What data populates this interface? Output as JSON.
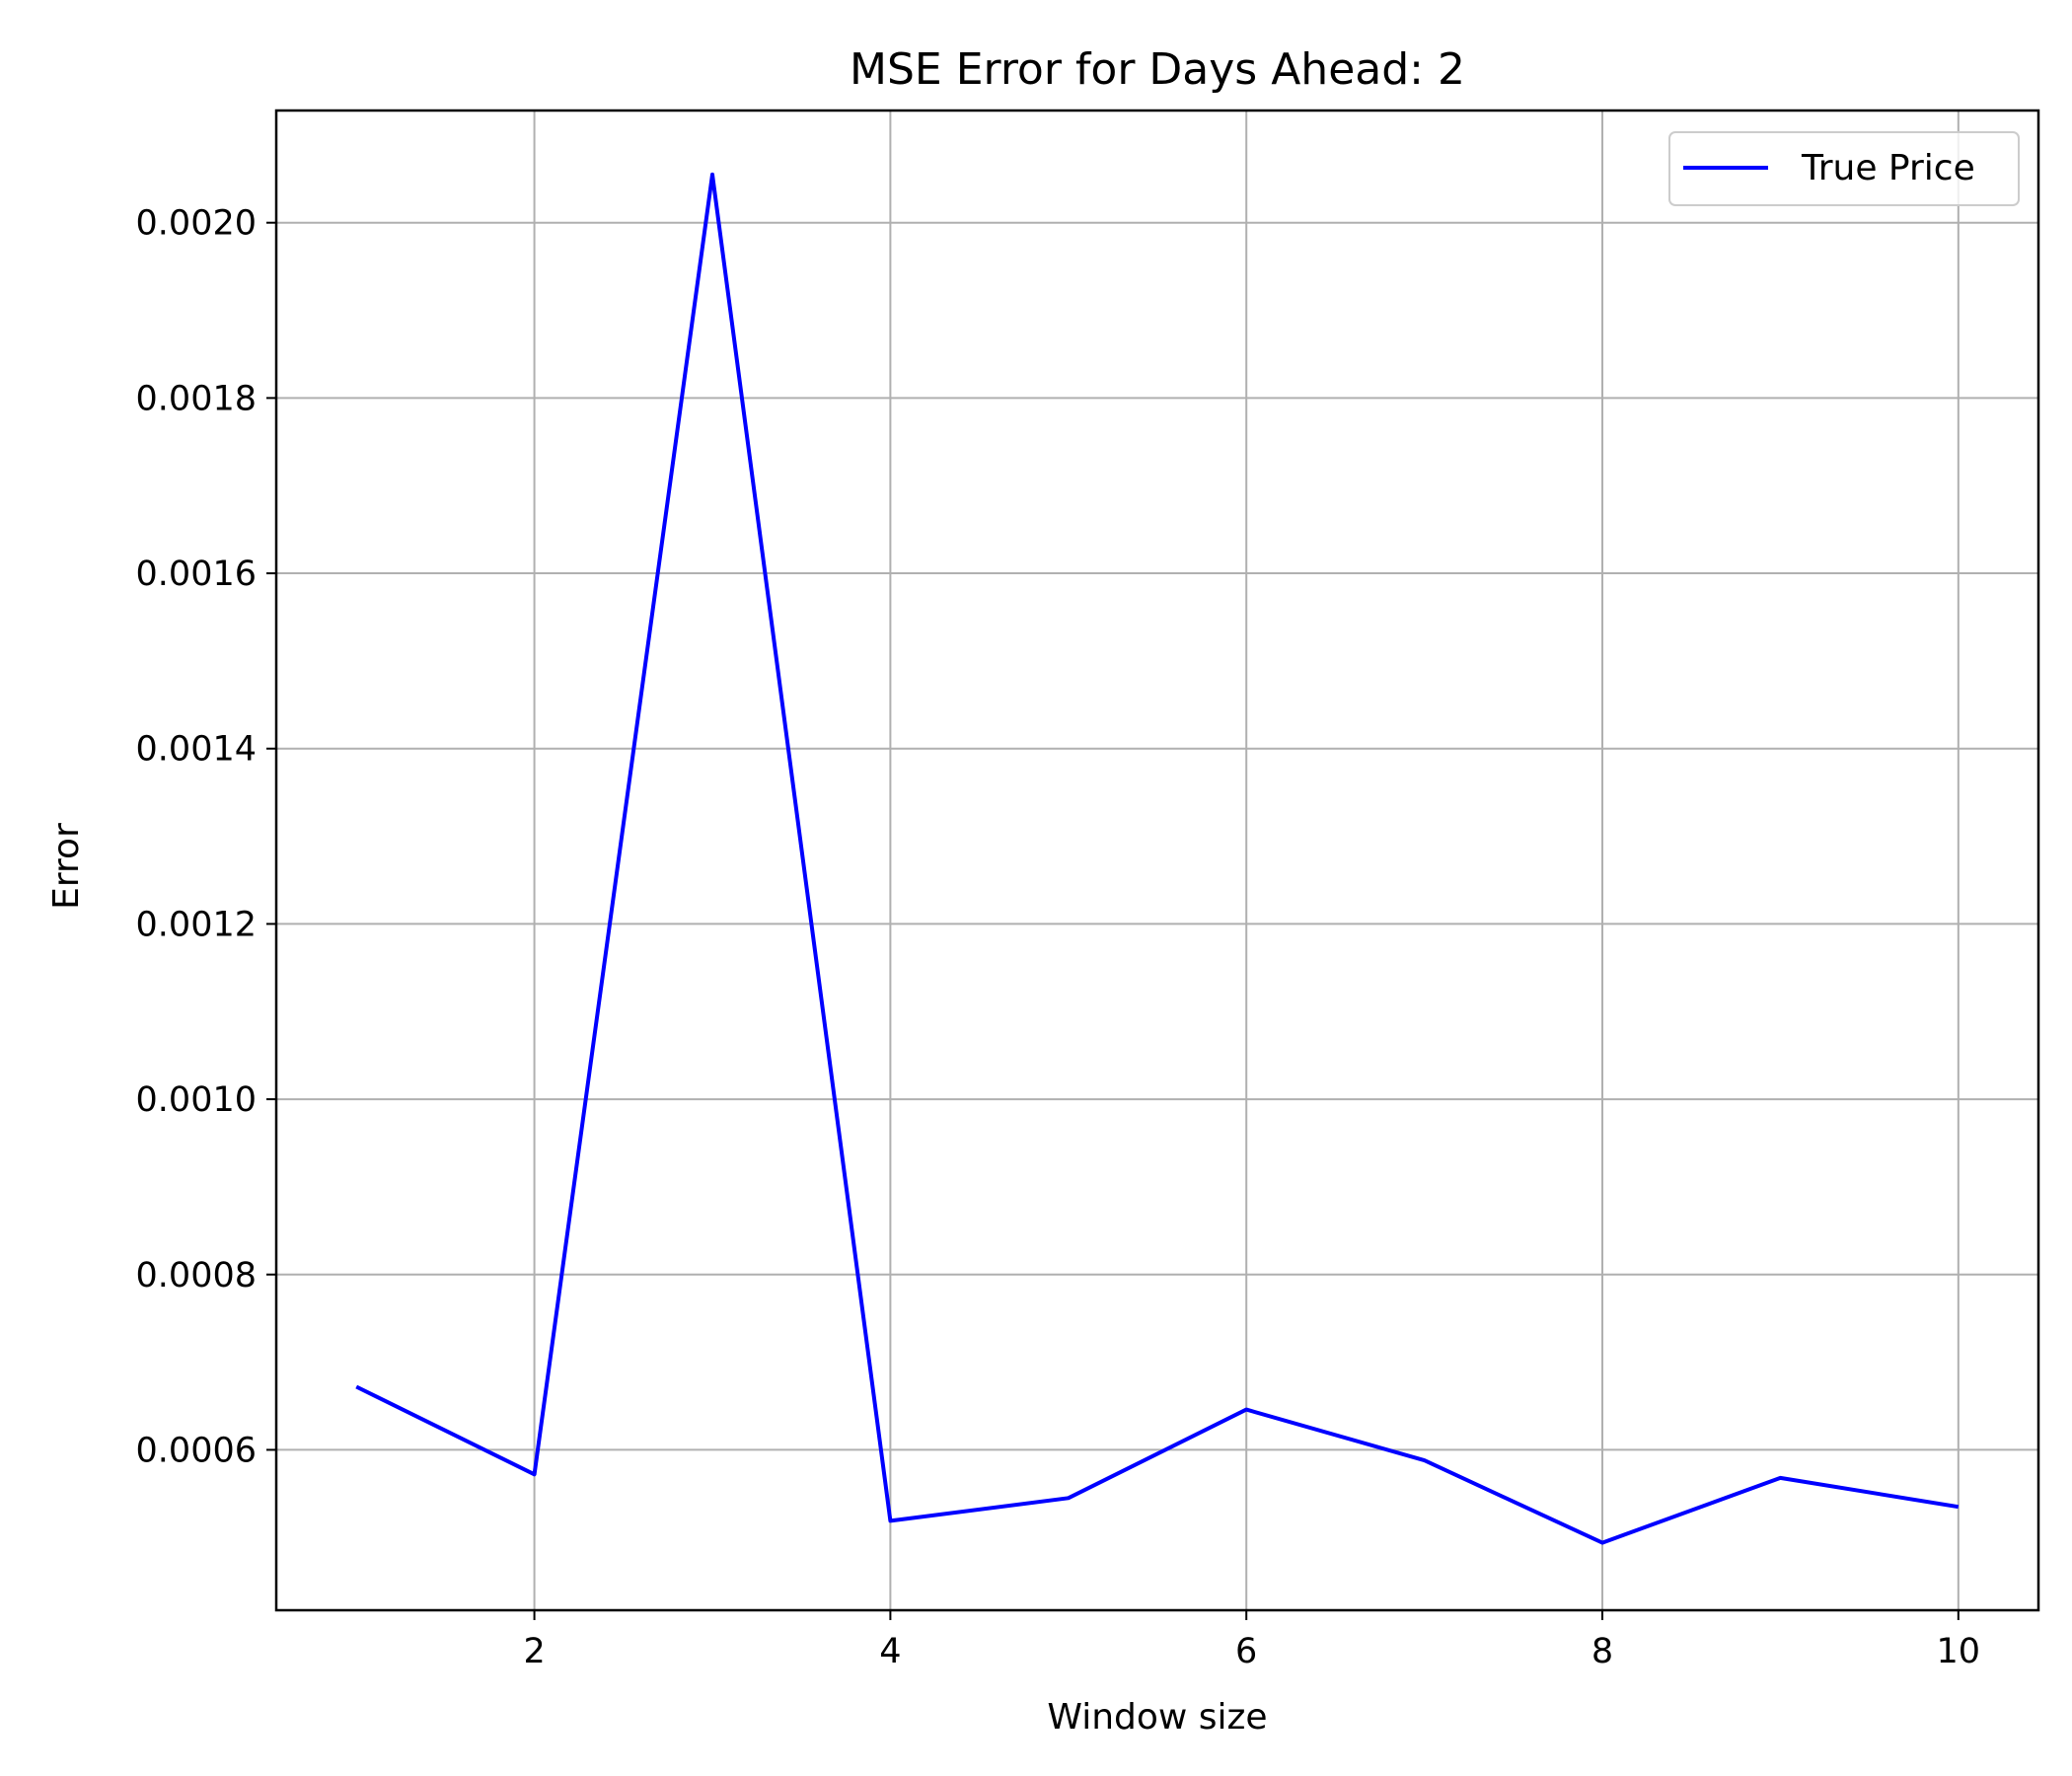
{
  "chart_data": {
    "type": "line",
    "title": "MSE Error for Days Ahead: 2",
    "xlabel": "Window size",
    "ylabel": "Error",
    "x": [
      1,
      2,
      3,
      4,
      5,
      6,
      7,
      8,
      9,
      10
    ],
    "series": [
      {
        "name": "True Price",
        "color": "#0000ff",
        "values": [
          0.000672,
          0.000572,
          0.002055,
          0.000519,
          0.000545,
          0.000646,
          0.000588,
          0.000494,
          0.000568,
          0.000535
        ]
      }
    ],
    "xlim": [
      0.55,
      10.45
    ],
    "ylim": [
      0.000417,
      0.002128
    ],
    "xticks": [
      2,
      4,
      6,
      8,
      10
    ],
    "xtick_labels": [
      "2",
      "4",
      "6",
      "8",
      "10"
    ],
    "yticks": [
      0.0006,
      0.0008,
      0.001,
      0.0012,
      0.0014,
      0.0016,
      0.0018,
      0.002
    ],
    "ytick_labels": [
      "0.0006",
      "0.0008",
      "0.0010",
      "0.0012",
      "0.0014",
      "0.0016",
      "0.0018",
      "0.0020"
    ],
    "grid": true,
    "grid_color": "#b0b0b0",
    "legend_position": "top-right"
  }
}
